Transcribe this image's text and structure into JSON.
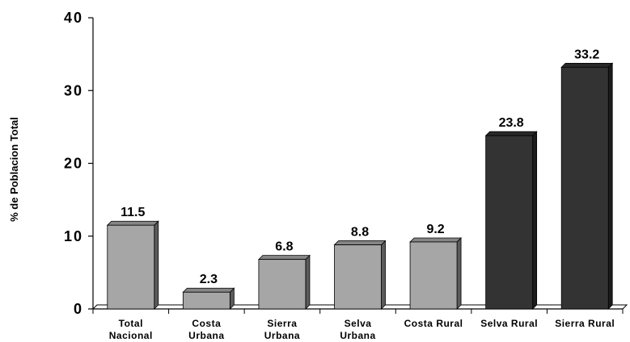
{
  "chart_data": {
    "type": "bar",
    "title": "",
    "xlabel": "",
    "ylabel": "% de Poblacion Total",
    "ylim": [
      0,
      40
    ],
    "yticks": [
      "0",
      "10",
      "20",
      "30",
      "40"
    ],
    "grid": false,
    "legend": "none",
    "categories": [
      [
        "Total",
        "Nacional"
      ],
      [
        "Costa",
        "Urbana"
      ],
      [
        "Sierra",
        "Urbana"
      ],
      [
        "Selva",
        "Urbana"
      ],
      [
        "Costa Rural"
      ],
      [
        "Selva Rural"
      ],
      [
        "Sierra Rural"
      ]
    ],
    "values": [
      11.5,
      2.3,
      6.8,
      8.8,
      9.2,
      23.8,
      33.2
    ],
    "value_labels": [
      "11.5",
      "2.3",
      "6.8",
      "8.8",
      "9.2",
      "23.8",
      "33.2"
    ],
    "bar_colors": [
      "#a6a6a6",
      "#a6a6a6",
      "#a6a6a6",
      "#a6a6a6",
      "#a6a6a6",
      "#333333",
      "#333333"
    ]
  }
}
